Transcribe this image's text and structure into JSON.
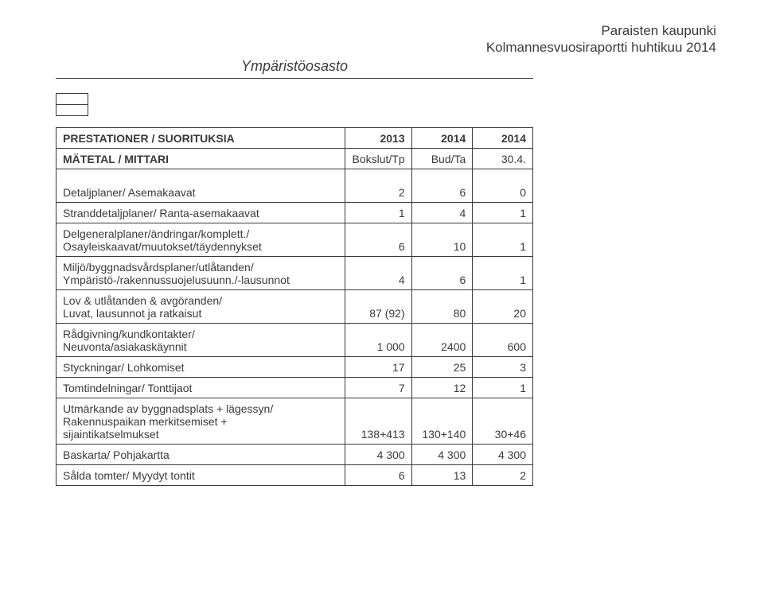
{
  "header": {
    "line1": "Paraisten kaupunki",
    "line2": "Kolmannesvuosiraportti huhtikuu 2014",
    "section": "Ympäristöosasto"
  },
  "table": {
    "title_row": {
      "label": "PRESTATIONER / SUORITUKSIA",
      "c1": "2013",
      "c2": "2014",
      "c3": "2014"
    },
    "subtitle_row": {
      "label": "MÄTETAL / MITTARI",
      "c1": "Bokslut/Tp",
      "c2": "Bud/Ta",
      "c3": "30.4."
    },
    "rows": [
      {
        "type": "data",
        "label": "Detaljplaner/ Asemakaavat",
        "c1": "2",
        "c2": "6",
        "c3": "0",
        "tall": true
      },
      {
        "type": "data",
        "label": "Stranddetaljplaner/ Ranta-asemakaavat",
        "c1": "1",
        "c2": "4",
        "c3": "1"
      },
      {
        "type": "group",
        "top": "Delgeneralplaner/ändringar/komplett./",
        "bottom": "Osayleiskaavat/muutokset/täydennykset",
        "c1": "6",
        "c2": "10",
        "c3": "1"
      },
      {
        "type": "group",
        "top": "Miljö/byggnadsvårdsplaner/utlåtanden/",
        "bottom": "Ympäristö-/rakennussuojelusuunn./-lausunnot",
        "c1": "4",
        "c2": "6",
        "c3": "1"
      },
      {
        "type": "group",
        "top": "Lov & utlåtanden & avgöranden/",
        "bottom": "Luvat, lausunnot ja ratkaisut",
        "c1": "87 (92)",
        "c2": "80",
        "c3": "20"
      },
      {
        "type": "group",
        "top": "Rådgivning/kundkontakter/",
        "bottom": "Neuvonta/asiakaskäynnit",
        "c1": "1 000",
        "c2": "2400",
        "c3": "600"
      },
      {
        "type": "data",
        "label": "Styckningar/ Lohkomiset",
        "c1": "17",
        "c2": "25",
        "c3": "3"
      },
      {
        "type": "data",
        "label": "Tomtindelningar/ Tonttijaot",
        "c1": "7",
        "c2": "12",
        "c3": "1"
      },
      {
        "type": "group3",
        "l1": "Utmärkande av byggnadsplats + lägessyn/",
        "l2": "Rakennuspaikan merkitsemiset +",
        "l3": "sijaintikatselmukset",
        "c1": "138+413",
        "c2": "130+140",
        "c3": "30+46"
      },
      {
        "type": "data",
        "label": "Baskarta/ Pohjakartta",
        "c1": "4 300",
        "c2": "4 300",
        "c3": "4 300"
      },
      {
        "type": "data",
        "label": "Sålda tomter/ Myydyt tontit",
        "c1": "6",
        "c2": "13",
        "c3": "2"
      }
    ]
  },
  "style": {
    "text_color": "#3a3a3a",
    "bg_color": "#ffffff",
    "font_sizes": {
      "header": 17,
      "section": 18,
      "body": 14
    }
  }
}
